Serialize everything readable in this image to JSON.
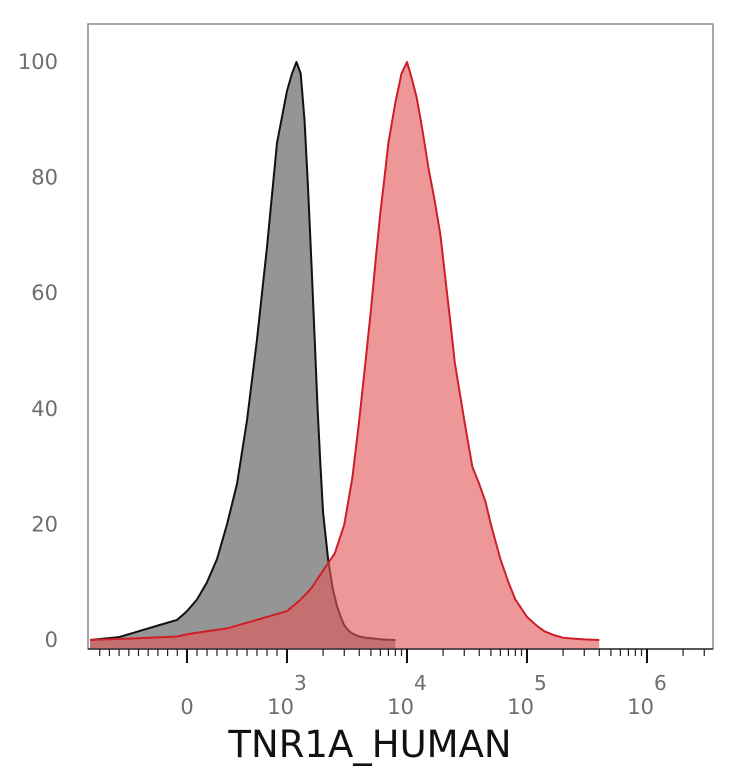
{
  "chart_data": {
    "type": "area",
    "title": "",
    "xlabel": "TNR1A_HUMAN",
    "ylabel": "",
    "x_scale": "biexponential",
    "xlim": [
      -1000,
      3000000
    ],
    "ylim": [
      0,
      105
    ],
    "grid": false,
    "yticks": [
      {
        "value": 0,
        "label": "0"
      },
      {
        "value": 20,
        "label": "20"
      },
      {
        "value": 40,
        "label": "40"
      },
      {
        "value": 60,
        "label": "60"
      },
      {
        "value": 80,
        "label": "80"
      },
      {
        "value": 100,
        "label": "100"
      }
    ],
    "xticks": [
      {
        "value": 0,
        "base": "0",
        "exp": ""
      },
      {
        "value": 1000,
        "base": "10",
        "exp": "3"
      },
      {
        "value": 10000,
        "base": "10",
        "exp": "4"
      },
      {
        "value": 100000,
        "base": "10",
        "exp": "5"
      },
      {
        "value": 1000000,
        "base": "10",
        "exp": "6"
      }
    ],
    "series": [
      {
        "fill": "#7a7a7a",
        "fill_opacity": 0.8,
        "stroke": "#111111",
        "x": [
          -1000,
          -700,
          -500,
          -300,
          -100,
          0,
          100,
          200,
          300,
          400,
          500,
          600,
          700,
          800,
          900,
          1000,
          1100,
          1200,
          1300,
          1400,
          1500,
          1600,
          1700,
          1800,
          1900,
          2000,
          2200,
          2400,
          2600,
          2800,
          3000,
          3300,
          3600,
          4000,
          4500,
          5000,
          5500,
          6000,
          7000,
          8000
        ],
        "y": [
          0,
          0.5,
          1.5,
          2.5,
          3.5,
          5,
          7,
          10,
          14,
          20,
          27,
          38,
          52,
          68,
          86,
          95,
          98,
          100,
          98,
          90,
          78,
          65,
          52,
          40,
          30,
          22,
          14,
          9,
          6,
          4,
          2.5,
          1.5,
          1,
          0.6,
          0.4,
          0.3,
          0.2,
          0.1,
          0.05,
          0
        ]
      },
      {
        "fill": "#e3575b",
        "fill_opacity": 0.62,
        "stroke": "#cc1f27",
        "x": [
          -1000,
          -500,
          -100,
          0,
          200,
          400,
          600,
          800,
          1000,
          1300,
          1600,
          2000,
          2500,
          3000,
          3500,
          4000,
          4500,
          5000,
          5500,
          6000,
          6500,
          7000,
          8000,
          9000,
          10000,
          11000,
          12000,
          13000,
          14000,
          15000,
          17000,
          19000,
          21000,
          23000,
          25000,
          30000,
          35000,
          40000,
          45000,
          50000,
          60000,
          70000,
          80000,
          100000,
          120000,
          140000,
          170000,
          200000,
          250000,
          300000,
          400000
        ],
        "y": [
          0,
          0.3,
          0.6,
          1,
          1.5,
          2,
          3,
          4,
          5,
          7,
          9,
          12,
          15,
          20,
          28,
          38,
          48,
          57,
          66,
          74,
          80,
          86,
          93,
          98,
          100,
          97,
          94,
          90,
          86,
          82,
          76,
          70,
          62,
          55,
          48,
          38,
          30,
          27,
          24,
          20,
          14,
          10,
          7,
          4,
          2.5,
          1.5,
          0.8,
          0.4,
          0.2,
          0.1,
          0
        ]
      }
    ]
  }
}
